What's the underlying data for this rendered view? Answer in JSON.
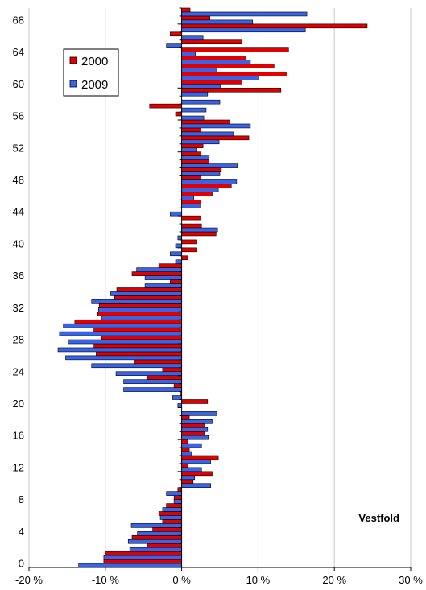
{
  "chart_data": {
    "type": "bar",
    "orientation": "horizontal",
    "title": "Vestfold",
    "xlabel": "",
    "ylabel": "",
    "xlim": [
      -20,
      30
    ],
    "x_ticks": [
      -20,
      -10,
      0,
      10,
      20,
      30
    ],
    "x_tick_labels": [
      "-20 %",
      "-10 %",
      "0 %",
      "10 %",
      "20 %",
      "30 %"
    ],
    "ylim": [
      0,
      69
    ],
    "y_ticks": [
      0,
      4,
      8,
      12,
      16,
      20,
      24,
      28,
      32,
      36,
      40,
      44,
      48,
      52,
      56,
      60,
      64,
      68
    ],
    "y_tick_labels": [
      "0",
      "4",
      "8",
      "12",
      "16",
      "20",
      "24",
      "28",
      "32",
      "36",
      "40",
      "44",
      "48",
      "52",
      "56",
      "60",
      "64",
      "68"
    ],
    "grid": "vertical",
    "legend_position": "top-left",
    "colors": {
      "2000": "#e00000",
      "2009": "#3a64e8"
    },
    "categories": [
      0,
      1,
      2,
      3,
      4,
      5,
      6,
      7,
      8,
      9,
      10,
      11,
      12,
      13,
      14,
      15,
      16,
      17,
      18,
      19,
      20,
      21,
      22,
      23,
      24,
      25,
      26,
      27,
      28,
      29,
      30,
      31,
      32,
      33,
      34,
      35,
      36,
      37,
      38,
      39,
      40,
      41,
      42,
      43,
      44,
      45,
      46,
      47,
      48,
      49,
      50,
      51,
      52,
      53,
      54,
      55,
      56,
      57,
      58,
      59,
      60,
      61,
      62,
      63,
      64,
      65,
      66,
      67,
      68,
      69
    ],
    "series": [
      {
        "name": "2000",
        "values": [
          -10.2,
          -10.0,
          -4.5,
          -6.5,
          -3.8,
          -2.5,
          -3.0,
          -2.0,
          -1.0,
          -0.5,
          1.5,
          4.0,
          0.8,
          4.8,
          1.0,
          0.8,
          3.0,
          3.0,
          1.0,
          0.0,
          3.4,
          -0.2,
          -1.0,
          -4.5,
          -2.5,
          -6.2,
          -11.2,
          -11.5,
          -10.5,
          -11.5,
          -14.0,
          -11.0,
          -10.8,
          -8.8,
          -8.5,
          -1.5,
          -6.5,
          -3.0,
          0.8,
          2.0,
          2.0,
          4.5,
          2.6,
          2.5,
          0.0,
          2.5,
          4.0,
          6.5,
          2.5,
          5.2,
          3.6,
          2.5,
          2.8,
          8.8,
          2.5,
          6.3,
          -0.8,
          -4.2,
          0.0,
          13.0,
          7.9,
          13.8,
          12.1,
          8.4,
          14.0,
          7.9,
          -1.5,
          24.3,
          3.7,
          1.1
        ]
      },
      {
        "name": "2009",
        "values": [
          -13.5,
          -10.2,
          -6.8,
          -7.0,
          -5.8,
          -6.6,
          -2.8,
          -2.5,
          -1.0,
          -2.0,
          3.8,
          1.7,
          2.6,
          3.8,
          1.3,
          2.6,
          3.5,
          3.4,
          4.0,
          4.6,
          -0.5,
          -1.2,
          -7.6,
          -7.6,
          -8.6,
          -11.8,
          -15.2,
          -16.2,
          -14.9,
          -16.0,
          -15.5,
          -10.5,
          -10.9,
          -11.8,
          -9.3,
          -4.8,
          -4.8,
          -5.9,
          -0.8,
          -1.5,
          -0.8,
          -0.5,
          4.7,
          0.0,
          -1.5,
          2.4,
          1.6,
          4.8,
          7.2,
          5.0,
          7.3,
          3.6,
          2.0,
          4.9,
          6.8,
          9.0,
          2.9,
          3.2,
          5.0,
          3.4,
          5.1,
          10.1,
          4.6,
          9.0,
          1.8,
          -2.0,
          2.8,
          16.2,
          9.3,
          16.4
        ]
      }
    ]
  }
}
